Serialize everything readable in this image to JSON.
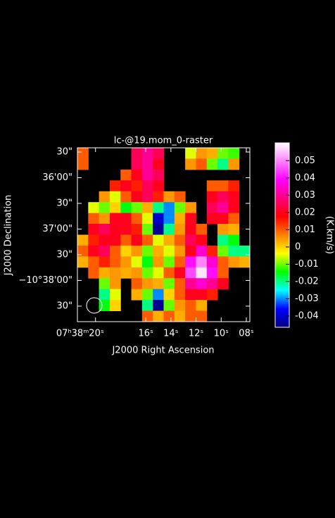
{
  "chart_data": {
    "type": "heatmap",
    "title": "lc-@19.mom_0-raster",
    "x_label": "J2000 Right Ascension",
    "y_label": "J2000 Declination",
    "colorbar_label": "(K.km/s)",
    "xlim": [
      21.44,
      7.72
    ],
    "ylim": [
      -10.6467,
      -10.5903
    ],
    "xticks": [
      {
        "value": 20,
        "label": "07ʰ38ᵐ20ˢ"
      },
      {
        "value": 16,
        "label": "16ˢ"
      },
      {
        "value": 14,
        "label": "14ˢ"
      },
      {
        "value": 12,
        "label": "12ˢ"
      },
      {
        "value": 10,
        "label": "10ˢ"
      },
      {
        "value": 8,
        "label": "08ˢ"
      }
    ],
    "yticks": [
      {
        "value": -10.59167,
        "label": "30\""
      },
      {
        "value": -10.6,
        "label": "36'00\""
      },
      {
        "value": -10.60833,
        "label": "30\""
      },
      {
        "value": -10.61667,
        "label": "37'00\""
      },
      {
        "value": -10.625,
        "label": "30\""
      },
      {
        "value": -10.63333,
        "label": "−10°38'00\""
      },
      {
        "value": -10.64167,
        "label": "30\""
      }
    ],
    "zlim": [
      -0.0465,
      0.0603
    ],
    "zticks": [
      0.05,
      0.04,
      0.03,
      0.02,
      0.01,
      0,
      -0.01,
      -0.02,
      -0.03,
      -0.04
    ],
    "colormap": [
      "#000080",
      "#0000ff",
      "#00ffff",
      "#00ff00",
      "#ffff00",
      "#ff8000",
      "#ff0000",
      "#ff0080",
      "#ff00ff",
      "#ff80ff",
      "#ffffff"
    ],
    "z": [
      [
        0.01,
        null,
        null,
        null,
        null,
        0.025,
        0.03,
        0.025,
        null,
        null,
        -0.005,
        0.005,
        0.003,
        -0.01,
        -0.012,
        null
      ],
      [
        0.01,
        null,
        null,
        null,
        null,
        0.025,
        0.03,
        0.02,
        null,
        null,
        0.005,
        0.01,
        -0.01,
        -0.02,
        0.005,
        null
      ],
      [
        null,
        null,
        null,
        null,
        0.01,
        0.02,
        0.03,
        0.025,
        null,
        null,
        null,
        null,
        null,
        null,
        null,
        null
      ],
      [
        null,
        null,
        null,
        0.015,
        0.02,
        0.015,
        0.025,
        0.02,
        null,
        null,
        null,
        null,
        0.01,
        0.01,
        0.015,
        null
      ],
      [
        null,
        null,
        0.005,
        -0.005,
        0.01,
        0.02,
        0.025,
        0.015,
        0.005,
        0.01,
        null,
        null,
        0.02,
        0.025,
        0.02,
        null
      ],
      [
        null,
        -0.005,
        -0.01,
        0,
        -0.015,
        -0.01,
        0.003,
        -0.02,
        -0.03,
        -0.01,
        0.005,
        null,
        0.025,
        0.03,
        0.02,
        null
      ],
      [
        null,
        0.01,
        0.005,
        0.02,
        0.02,
        0.01,
        -0.005,
        -0.04,
        -0.03,
        0.003,
        0.02,
        null,
        0.02,
        0.02,
        0.01,
        null
      ],
      [
        null,
        0.02,
        0.025,
        0.02,
        0.02,
        0.015,
        -0.01,
        -0.045,
        -0.02,
        0.005,
        0.02,
        0.01,
        null,
        0.005,
        0.003,
        null
      ],
      [
        0.003,
        0.015,
        0.02,
        0.02,
        0.01,
        0.02,
        0.01,
        -0.005,
        0.003,
        0.01,
        0.025,
        0.02,
        null,
        -0.02,
        -0.015,
        null
      ],
      [
        0.01,
        0.02,
        0.025,
        0.01,
        0,
        0.005,
        -0.01,
        0.003,
        -0.005,
        0.005,
        0.02,
        0.035,
        0.015,
        -0.01,
        -0.02,
        -0.02
      ],
      [
        0.003,
        0.01,
        0.015,
        0.01,
        0.005,
        -0.005,
        -0.015,
        0.005,
        -0.01,
        0.01,
        0.04,
        0.05,
        0.035,
        0.01,
        0.005,
        0.003
      ],
      [
        null,
        0.01,
        0.003,
        0.005,
        0.003,
        0.005,
        -0.01,
        -0.005,
        0.01,
        0.02,
        0.045,
        0.058,
        0.04,
        0.01,
        null,
        null
      ],
      [
        null,
        null,
        -0.01,
        0.005,
        null,
        0.01,
        0.005,
        0.003,
        -0.01,
        0.01,
        0.03,
        0.035,
        0.03,
        0.02,
        null,
        null
      ],
      [
        null,
        null,
        -0.02,
        -0.005,
        null,
        0.003,
        -0.01,
        -0.03,
        0,
        0.01,
        0.02,
        0.02,
        0.015,
        null,
        null,
        null
      ],
      [
        null,
        null,
        -0.015,
        0,
        null,
        null,
        -0.02,
        -0.045,
        -0.01,
        0.005,
        0.01,
        0.003,
        null,
        null,
        null,
        null
      ],
      [
        null,
        null,
        null,
        null,
        null,
        null,
        0.01,
        0.003,
        0.01,
        0.003,
        0.01,
        0.01,
        null,
        null,
        null,
        null
      ]
    ]
  }
}
